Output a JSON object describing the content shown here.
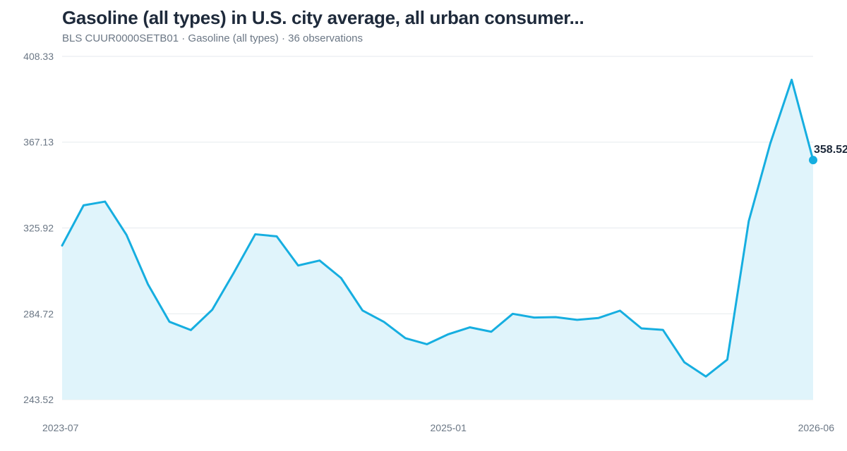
{
  "header": {
    "title": "Gasoline (all types) in U.S. city average, all urban consumer...",
    "subtitle": "BLS CUUR0000SETB01 · Gasoline (all types) · 36 observations"
  },
  "colors": {
    "line": "#16aee0",
    "fill": "#e0f4fb",
    "grid": "#e6eaee",
    "text": "#6b7785"
  },
  "chart_data": {
    "type": "area",
    "title": "Gasoline (all types) in U.S. city average, all urban consumer...",
    "xlabel": "",
    "ylabel": "",
    "x": [
      "2023-07",
      "2023-08",
      "2023-09",
      "2023-10",
      "2023-11",
      "2023-12",
      "2024-01",
      "2024-02",
      "2024-03",
      "2024-04",
      "2024-05",
      "2024-06",
      "2024-07",
      "2024-08",
      "2024-09",
      "2024-10",
      "2024-11",
      "2024-12",
      "2025-01",
      "2025-02",
      "2025-03",
      "2025-04",
      "2025-05",
      "2025-06",
      "2025-07",
      "2025-08",
      "2025-09",
      "2025-10",
      "2025-11",
      "2025-12",
      "2026-01",
      "2026-02",
      "2026-03",
      "2026-04",
      "2026-05",
      "2026-06"
    ],
    "values": [
      317.5,
      336.8,
      338.6,
      322.6,
      298.9,
      280.9,
      276.9,
      286.7,
      304.4,
      322.9,
      321.9,
      307.9,
      310.3,
      301.9,
      286.3,
      280.8,
      273.0,
      270.1,
      274.9,
      278.2,
      276.1,
      284.7,
      282.9,
      283.1,
      281.8,
      282.7,
      286.2,
      277.7,
      277.0,
      261.4,
      254.6,
      262.7,
      329.2,
      366.4,
      397.1,
      358.52
    ],
    "ylim": [
      243.52,
      408.33
    ],
    "yticks": [
      "408.33",
      "367.13",
      "325.92",
      "284.72",
      "243.52"
    ],
    "xticks": [
      "2023-07",
      "2025-01",
      "2026-06"
    ],
    "last_value_label": "358.52",
    "grid": true,
    "legend": "none"
  }
}
